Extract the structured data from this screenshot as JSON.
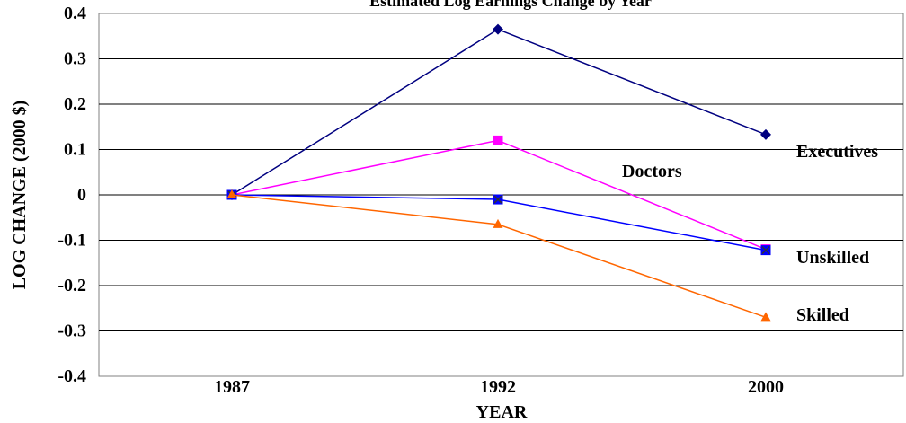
{
  "chart_data": {
    "type": "line",
    "title": "Estimated Log Earnings Change by Year",
    "xlabel": "YEAR",
    "ylabel": "LOG CHANGE (2000 $)",
    "categories": [
      "1987",
      "1992",
      "2000"
    ],
    "ylim": [
      -0.4,
      0.4
    ],
    "yticks": [
      0.4,
      0.3,
      0.2,
      0.1,
      0,
      -0.1,
      -0.2,
      -0.3,
      -0.4
    ],
    "grid": true,
    "legend": "inline labels at right",
    "series": [
      {
        "name": "Executives",
        "values": [
          0,
          0.365,
          0.133
        ],
        "color": "#000080",
        "marker": "diamond"
      },
      {
        "name": "Doctors",
        "values": [
          0,
          0.12,
          -0.12
        ],
        "color": "#ff00ff",
        "marker": "square"
      },
      {
        "name": "Unskilled",
        "values": [
          0,
          -0.01,
          -0.122
        ],
        "color": "#0000ff",
        "marker": "x-square"
      },
      {
        "name": "Skilled",
        "values": [
          0,
          -0.065,
          -0.27
        ],
        "color": "#ff6600",
        "marker": "triangle"
      }
    ]
  }
}
